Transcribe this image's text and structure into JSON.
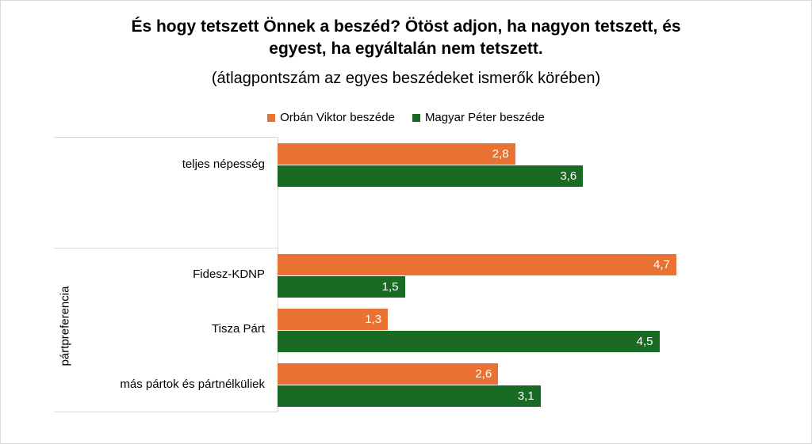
{
  "chart_data": {
    "type": "bar",
    "orientation": "horizontal",
    "title_lines": [
      "És hogy tetszett Önnek a beszéd? Ötöst adjon, ha nagyon tetszett, és",
      "egyest, ha egyáltalán nem tetszett."
    ],
    "subtitle": "(átlagpontszám az egyes beszédeket ismerők körében)",
    "categories": [
      "teljes népesség",
      "Fidesz-KDNP",
      "Tisza Párt",
      "más pártok és pártnélküliek"
    ],
    "group_label": "pártpreferencia",
    "series": [
      {
        "name": "Orbán Viktor beszéde",
        "color": "#E97132",
        "values": [
          2.8,
          4.7,
          1.3,
          2.6
        ],
        "labels": [
          "2,8",
          "4,7",
          "1,3",
          "2,6"
        ]
      },
      {
        "name": "Magyar Péter beszéde",
        "color": "#196B24",
        "values": [
          3.6,
          1.5,
          4.5,
          3.1
        ],
        "labels": [
          "3,6",
          "1,5",
          "4,5",
          "3,1"
        ]
      }
    ],
    "legend_position": "top",
    "grid": false,
    "xlim": [
      0,
      5
    ]
  }
}
